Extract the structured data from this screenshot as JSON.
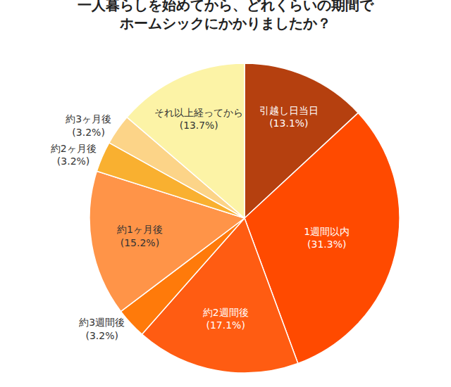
{
  "chart_data": {
    "type": "pie",
    "title": "一人暮らしを始めてから、どれくらいの期間で\nホームシックにかかりましたか？",
    "categories": [
      "引越し日当日",
      "1週間以内",
      "約2週間後",
      "約3週間後",
      "約1ヶ月後",
      "約2ヶ月後",
      "約3ヶ月後",
      "それ以上経ってから"
    ],
    "values": [
      13.1,
      31.3,
      17.1,
      3.2,
      15.2,
      3.2,
      3.2,
      13.7
    ],
    "value_labels": [
      "(13.1%)",
      "(31.3%)",
      "(17.1%)",
      "(3.2%)",
      "(15.2%)",
      "(3.2%)",
      "(3.2%)",
      "(13.7%)"
    ],
    "colors": [
      "#b5400f",
      "#ff4a00",
      "#ff5c12",
      "#ff7a0a",
      "#ff9448",
      "#f9b030",
      "#fcd488",
      "#fcf3a6"
    ],
    "data_labels": true,
    "legend": false
  }
}
